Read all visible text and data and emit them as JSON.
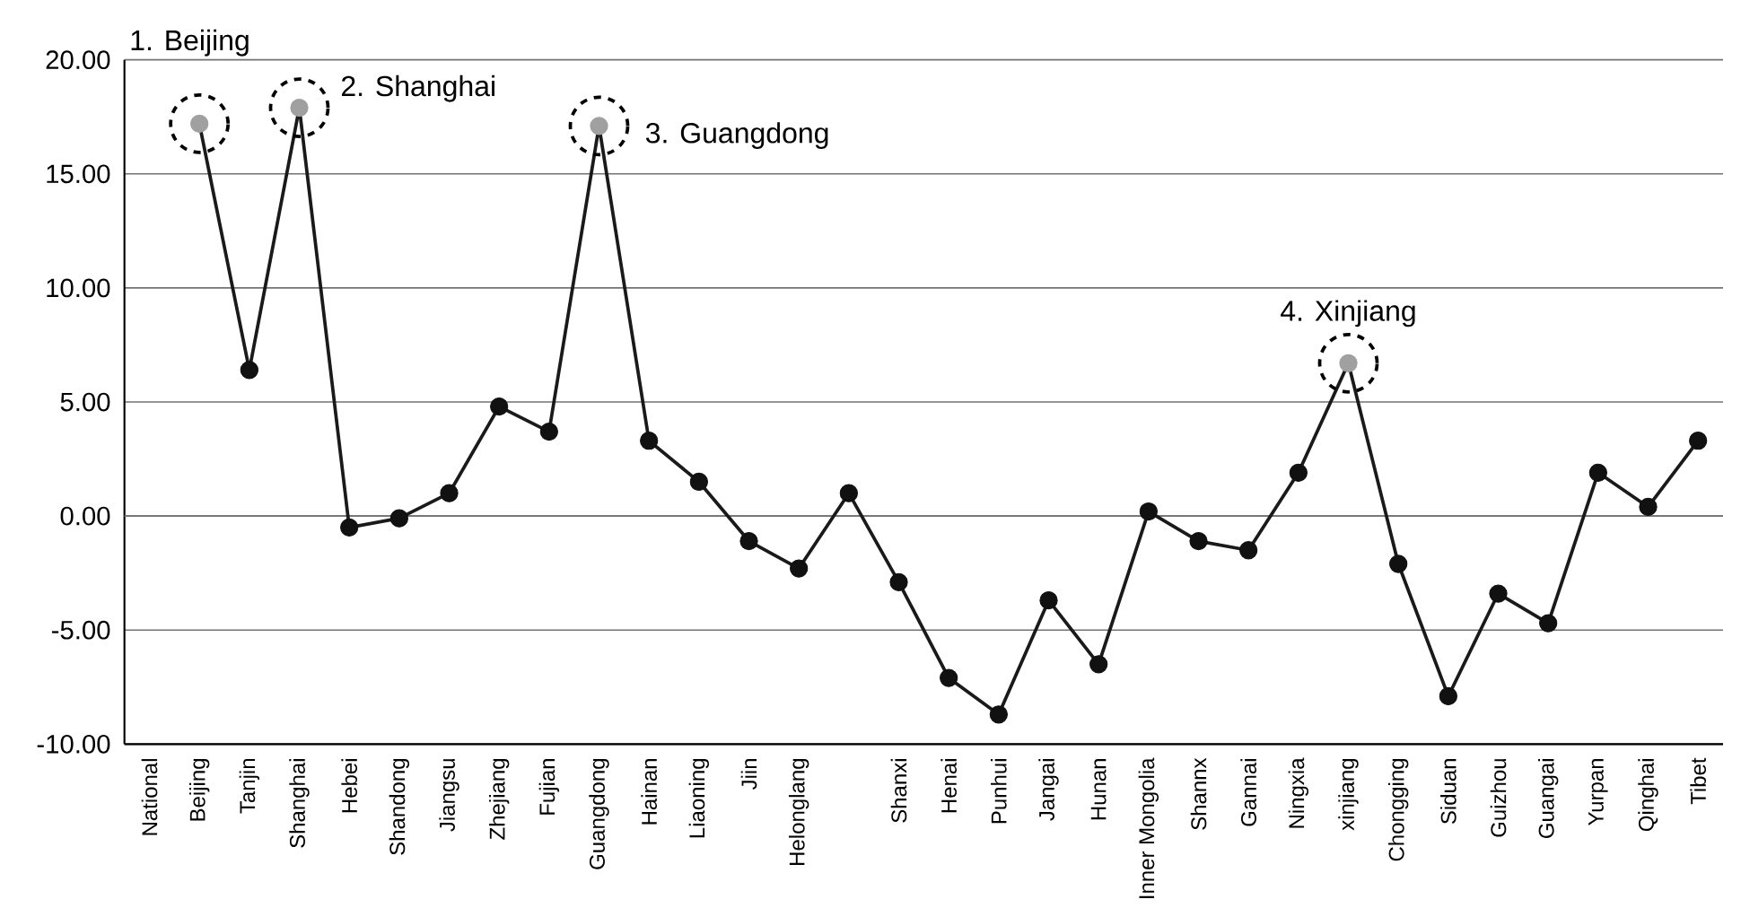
{
  "chart_data": {
    "type": "line",
    "categories": [
      "National",
      "Beijing",
      "Tanjin",
      "Shanghai",
      "Hebei",
      "Shandong",
      "Jiangsu",
      "Zhejiang",
      "Fujian",
      "Guangdong",
      "Hainan",
      "Liaoning",
      "Jiin",
      "Helonglang",
      null,
      "Shanxi",
      "Henai",
      "Punhui",
      "Jangai",
      "Hunan",
      "Inner Mongolia",
      "Shannx",
      "Gannai",
      "Ningxia",
      "xinjiang",
      "Chongging",
      "Siduan",
      "Guizhou",
      "Guangai",
      "Yurpan",
      "Qinghai",
      "Tibet"
    ],
    "series": [
      {
        "color": "#1a1a1a",
        "values": [
          null,
          17.2,
          6.4,
          17.9,
          -0.5,
          -0.1,
          1.0,
          4.8,
          3.7,
          17.1,
          3.3,
          1.5,
          -1.1,
          -2.3,
          1.0,
          -2.9,
          -7.1,
          -8.7,
          -3.7,
          -6.5,
          0.2,
          -1.1,
          -1.5,
          1.9,
          6.7,
          -2.1,
          -7.9,
          -3.4,
          -4.7,
          1.9,
          0.4,
          3.3
        ],
        "colors": [
          null,
          "#a0a0a0",
          "#111111",
          "#a0a0a0",
          "#111111",
          "#111111",
          "#111111",
          "#111111",
          "#111111",
          "#a0a0a0",
          "#111111",
          "#111111",
          "#111111",
          "#111111",
          "#111111",
          "#111111",
          "#111111",
          "#111111",
          "#111111",
          "#111111",
          "#111111",
          "#111111",
          "#111111",
          "#111111",
          "#a0a0a0",
          "#111111",
          "#111111",
          "#111111",
          "#111111",
          "#111111",
          "#111111",
          "#111111"
        ]
      }
    ],
    "ylim": [
      -10,
      20
    ],
    "yticks": [
      {
        "value": -10,
        "label": "-10.00"
      },
      {
        "value": -5,
        "label": "-5.00"
      },
      {
        "value": 0,
        "label": "0.00"
      },
      {
        "value": 5,
        "label": "5.00"
      },
      {
        "value": 10,
        "label": "10.00"
      },
      {
        "value": 15,
        "label": "15.00"
      },
      {
        "value": 20,
        "label": "20.00"
      }
    ],
    "grid": "y",
    "marker": "circle",
    "line_style": "solid",
    "annotations": [
      {
        "text": "1. Beijing",
        "x": "Beijing",
        "y": 17.2
      },
      {
        "text": "2. Shanghai",
        "x": "Shanghai",
        "y": 17.9
      },
      {
        "text": "3. Guangdong",
        "x": "Guangdong",
        "y": 17.1
      },
      {
        "text": "4. Xinjiang",
        "x": "xinjiang",
        "y": 6.7
      }
    ]
  }
}
